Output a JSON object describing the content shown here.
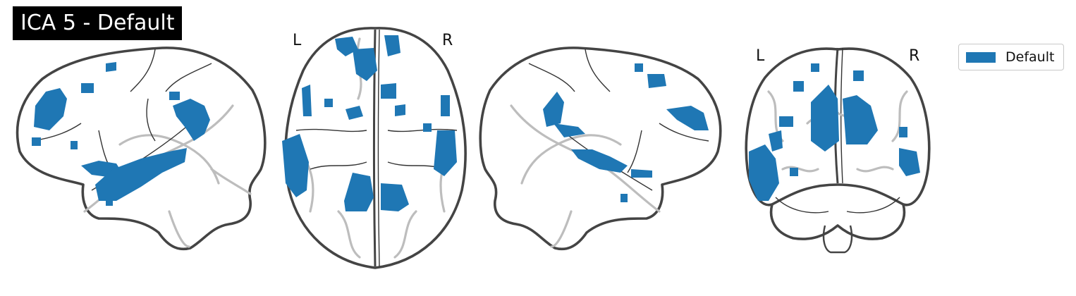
{
  "title": "ICA 5 - Default",
  "orientation_labels": {
    "axial_left": "L",
    "axial_right": "R",
    "coronal_left": "L",
    "coronal_right": "R"
  },
  "legend": {
    "label": "Default",
    "color": "#1f77b4"
  },
  "colors": {
    "blob": "#1f77b4",
    "outline": "#444444",
    "contour": "#bdbdbd"
  }
}
